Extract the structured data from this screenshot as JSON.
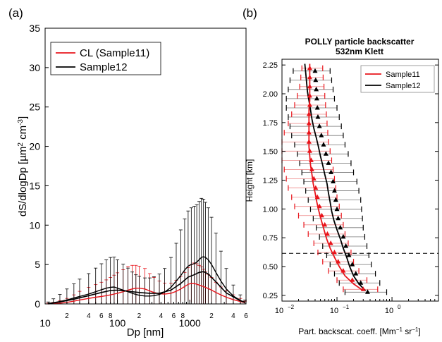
{
  "figure": {
    "panel_a_label": "(a)",
    "panel_b_label": "(b)"
  },
  "chart_data": [
    {
      "type": "line",
      "panel": "(a)",
      "title": "",
      "xlabel": "Dp [nm]",
      "ylabel": "dS/dlogDp [µm² cm⁻³]",
      "ylabel_main": "dS/dlogDp [µm",
      "ylabel_sup1": "2",
      "ylabel_mid": " cm",
      "ylabel_sup2": "-3",
      "ylabel_end": "]",
      "xscale": "log",
      "xlim": [
        10,
        6000
      ],
      "ylim": [
        0,
        35
      ],
      "yticks": [
        0,
        5,
        10,
        15,
        20,
        25,
        30,
        35
      ],
      "xticks_major": [
        {
          "value": 10,
          "label": "10"
        },
        {
          "value": 100,
          "label": "100"
        },
        {
          "value": 1000,
          "label": "1000"
        }
      ],
      "xticks_minor_labeled": [
        {
          "value": 20,
          "label": "2"
        },
        {
          "value": 40,
          "label": "4"
        },
        {
          "value": 60,
          "label": "6"
        },
        {
          "value": 80,
          "label": "8"
        },
        {
          "value": 200,
          "label": "2"
        },
        {
          "value": 400,
          "label": "4"
        },
        {
          "value": 600,
          "label": "6"
        },
        {
          "value": 800,
          "label": "8"
        },
        {
          "value": 2000,
          "label": "2"
        },
        {
          "value": 4000,
          "label": "4"
        },
        {
          "value": 6000,
          "label": "6"
        }
      ],
      "legend_position": "top-left",
      "series": [
        {
          "name": "CL (Sample11)",
          "color": "#e8141b",
          "x": [
            11,
            13,
            16,
            20,
            25,
            30,
            40,
            50,
            60,
            70,
            80,
            90,
            100,
            120,
            140,
            160,
            180,
            200,
            240,
            280,
            320,
            380,
            450,
            550,
            650,
            750,
            850,
            950,
            1050,
            1150,
            1250,
            1350,
            1450,
            1550,
            1650,
            1800,
            2000,
            2300,
            2700,
            3200,
            4000,
            5000,
            5800
          ],
          "y": [
            0.0,
            0.05,
            0.1,
            0.2,
            0.35,
            0.5,
            0.7,
            0.85,
            0.95,
            1.05,
            1.15,
            1.25,
            1.35,
            1.55,
            1.75,
            1.9,
            2.0,
            2.0,
            1.9,
            1.65,
            1.45,
            1.3,
            1.25,
            1.35,
            1.6,
            1.9,
            2.2,
            2.5,
            2.6,
            2.6,
            2.5,
            2.4,
            2.3,
            2.2,
            2.1,
            1.95,
            1.75,
            1.45,
            1.15,
            0.85,
            0.55,
            0.3,
            0.15
          ],
          "err": [
            0.1,
            0.15,
            0.3,
            0.5,
            0.8,
            1.1,
            1.4,
            1.6,
            1.8,
            2.0,
            2.2,
            2.4,
            2.6,
            2.8,
            3.0,
            3.0,
            2.9,
            2.8,
            2.6,
            2.2,
            1.9,
            1.6,
            1.4,
            1.3,
            1.4,
            1.6,
            1.8,
            2.1,
            2.4,
            2.6,
            2.6,
            2.5,
            2.4,
            2.2,
            2.0,
            1.8,
            1.6,
            1.3,
            1.0,
            0.8,
            0.6,
            0.4,
            0.2
          ]
        },
        {
          "name": "Sample12",
          "color": "#000000",
          "x": [
            11,
            13,
            16,
            20,
            25,
            30,
            40,
            50,
            60,
            70,
            80,
            90,
            100,
            120,
            140,
            160,
            180,
            200,
            240,
            280,
            320,
            380,
            450,
            550,
            650,
            750,
            850,
            950,
            1050,
            1150,
            1250,
            1350,
            1450,
            1550,
            1650,
            1800,
            2000,
            2300,
            2700,
            3200,
            4000,
            5000,
            5800
          ],
          "y": [
            0.05,
            0.15,
            0.3,
            0.5,
            0.75,
            0.95,
            1.25,
            1.55,
            1.8,
            2.0,
            2.1,
            2.15,
            2.0,
            1.75,
            1.55,
            1.35,
            1.2,
            1.1,
            1.0,
            1.0,
            1.05,
            1.2,
            1.5,
            2.1,
            2.9,
            3.6,
            4.3,
            4.8,
            5.0,
            5.1,
            5.3,
            5.6,
            5.9,
            6.0,
            5.9,
            5.6,
            5.0,
            4.0,
            2.9,
            1.9,
            1.0,
            0.45,
            0.2
          ],
          "err": [
            0.2,
            0.5,
            0.9,
            1.4,
            1.8,
            2.2,
            2.6,
            3.0,
            3.3,
            3.6,
            3.8,
            3.8,
            3.6,
            3.3,
            3.0,
            2.7,
            2.5,
            2.4,
            2.3,
            2.3,
            2.4,
            2.6,
            3.0,
            3.8,
            4.8,
            5.8,
            6.5,
            7.0,
            7.2,
            7.3,
            7.3,
            7.4,
            7.5,
            7.3,
            7.0,
            6.6,
            6.0,
            5.0,
            3.8,
            2.6,
            1.4,
            0.7,
            0.3
          ]
        },
        {
          "name": "",
          "color": "#000000",
          "role": "mean-line",
          "x": [
            11,
            16,
            25,
            40,
            60,
            80,
            100,
            140,
            200,
            280,
            380,
            550,
            750,
            950,
            1150,
            1350,
            1550,
            1800,
            2300,
            3200,
            5000,
            5800
          ],
          "y": [
            0.05,
            0.25,
            0.6,
            1.05,
            1.45,
            1.7,
            1.75,
            1.6,
            1.45,
            1.35,
            1.35,
            1.75,
            2.6,
            3.4,
            3.7,
            4.0,
            4.1,
            3.8,
            2.8,
            1.4,
            0.4,
            0.2
          ]
        }
      ]
    },
    {
      "type": "line",
      "panel": "(b)",
      "title": "POLLY particle backscatter",
      "subtitle": "532nm Klett",
      "xlabel": "Part. backscat. coeff. [Mm⁻¹ sr⁻¹]",
      "xlabel_main": "Part. backscat. coeff. [Mm",
      "xlabel_sup1": "−1",
      "xlabel_mid": " sr",
      "xlabel_sup2": "−1",
      "xlabel_end": "]",
      "ylabel": "Height [km]",
      "xscale": "log",
      "xlim": [
        0.01,
        7
      ],
      "ylim": [
        0.2,
        2.3
      ],
      "yticks": [
        0.25,
        0.5,
        0.75,
        1.0,
        1.25,
        1.5,
        1.75,
        2.0,
        2.25
      ],
      "ytick_labels": [
        "0.25",
        "0.50",
        "0.75",
        "1.00",
        "1.25",
        "1.50",
        "1.75",
        "2.00",
        "2.25"
      ],
      "xticks": [
        {
          "value": 0.01,
          "base": "10",
          "exp": "−2"
        },
        {
          "value": 0.1,
          "base": "10",
          "exp": "−1"
        },
        {
          "value": 1,
          "base": "10",
          "exp": "0"
        }
      ],
      "hline": 0.615,
      "legend_position": "top-right",
      "series": [
        {
          "name": "Sample11",
          "color": "#e8141b",
          "line_y": [
            0.29,
            0.35,
            0.42,
            0.5,
            0.58,
            0.66,
            0.74,
            0.82,
            0.9,
            0.98,
            1.06,
            1.14,
            1.22,
            1.3,
            1.38,
            1.46,
            1.54,
            1.62,
            1.7,
            1.78,
            1.86,
            1.94,
            2.02,
            2.1,
            2.18,
            2.26
          ],
          "line_x": [
            0.3,
            0.2,
            0.14,
            0.11,
            0.09,
            0.075,
            0.065,
            0.058,
            0.052,
            0.047,
            0.043,
            0.04,
            0.037,
            0.035,
            0.033,
            0.032,
            0.031,
            0.031,
            0.031,
            0.031,
            0.031,
            0.032,
            0.032,
            0.032,
            0.032,
            0.032
          ],
          "points": [
            {
              "y": 0.29,
              "x": 0.3,
              "lo": 0.13,
              "hi": 0.55
            },
            {
              "y": 0.37,
              "x": 0.19,
              "lo": 0.1,
              "hi": 0.35
            },
            {
              "y": 0.45,
              "x": 0.13,
              "lo": 0.07,
              "hi": 0.25
            },
            {
              "y": 0.53,
              "x": 0.105,
              "lo": 0.055,
              "hi": 0.2
            },
            {
              "y": 0.61,
              "x": 0.09,
              "lo": 0.045,
              "hi": 0.18
            },
            {
              "y": 0.69,
              "x": 0.077,
              "lo": 0.038,
              "hi": 0.16
            },
            {
              "y": 0.77,
              "x": 0.067,
              "lo": 0.03,
              "hi": 0.14
            },
            {
              "y": 0.85,
              "x": 0.06,
              "lo": 0.025,
              "hi": 0.13
            },
            {
              "y": 0.93,
              "x": 0.053,
              "lo": 0.02,
              "hi": 0.12
            },
            {
              "y": 1.01,
              "x": 0.048,
              "lo": 0.017,
              "hi": 0.11
            },
            {
              "y": 1.09,
              "x": 0.044,
              "lo": 0.015,
              "hi": 0.1
            },
            {
              "y": 1.17,
              "x": 0.041,
              "lo": 0.013,
              "hi": 0.095
            },
            {
              "y": 1.25,
              "x": 0.038,
              "lo": 0.012,
              "hi": 0.09
            },
            {
              "y": 1.33,
              "x": 0.035,
              "lo": 0.011,
              "hi": 0.085
            },
            {
              "y": 1.41,
              "x": 0.034,
              "lo": 0.01,
              "hi": 0.08
            },
            {
              "y": 1.49,
              "x": 0.032,
              "lo": 0.01,
              "hi": 0.075
            },
            {
              "y": 1.57,
              "x": 0.031,
              "lo": 0.01,
              "hi": 0.07
            },
            {
              "y": 1.65,
              "x": 0.031,
              "lo": 0.011,
              "hi": 0.068
            },
            {
              "y": 1.73,
              "x": 0.031,
              "lo": 0.013,
              "hi": 0.066
            },
            {
              "y": 1.81,
              "x": 0.031,
              "lo": 0.015,
              "hi": 0.064
            },
            {
              "y": 1.89,
              "x": 0.032,
              "lo": 0.017,
              "hi": 0.062
            },
            {
              "y": 1.97,
              "x": 0.032,
              "lo": 0.019,
              "hi": 0.06
            },
            {
              "y": 2.05,
              "x": 0.032,
              "lo": 0.021,
              "hi": 0.058
            },
            {
              "y": 2.13,
              "x": 0.032,
              "lo": 0.022,
              "hi": 0.056
            },
            {
              "y": 2.21,
              "x": 0.032,
              "lo": 0.023,
              "hi": 0.055
            }
          ]
        },
        {
          "name": "Sample12",
          "color": "#000000",
          "line_y": [
            0.29,
            0.35,
            0.42,
            0.5,
            0.58,
            0.66,
            0.74,
            0.82,
            0.9,
            0.98,
            1.06,
            1.14,
            1.22,
            1.3,
            1.38,
            1.46,
            1.54,
            1.62,
            1.7,
            1.78,
            1.86,
            1.94,
            2.02,
            2.1,
            2.18,
            2.26
          ],
          "line_x": [
            0.33,
            0.25,
            0.2,
            0.17,
            0.15,
            0.13,
            0.115,
            0.1,
            0.088,
            0.08,
            0.075,
            0.07,
            0.066,
            0.06,
            0.055,
            0.05,
            0.046,
            0.042,
            0.038,
            0.035,
            0.033,
            0.031,
            0.029,
            0.028,
            0.027,
            0.026
          ],
          "points": [
            {
              "y": 0.29,
              "x": 0.36,
              "lo": 0.14,
              "hi": 0.8
            },
            {
              "y": 0.37,
              "x": 0.27,
              "lo": 0.11,
              "hi": 0.6
            },
            {
              "y": 0.45,
              "x": 0.22,
              "lo": 0.09,
              "hi": 0.5
            },
            {
              "y": 0.53,
              "x": 0.19,
              "lo": 0.075,
              "hi": 0.42
            },
            {
              "y": 0.61,
              "x": 0.165,
              "lo": 0.065,
              "hi": 0.38
            },
            {
              "y": 0.69,
              "x": 0.145,
              "lo": 0.055,
              "hi": 0.35
            },
            {
              "y": 0.77,
              "x": 0.13,
              "lo": 0.048,
              "hi": 0.32
            },
            {
              "y": 0.85,
              "x": 0.115,
              "lo": 0.042,
              "hi": 0.3
            },
            {
              "y": 0.93,
              "x": 0.105,
              "lo": 0.037,
              "hi": 0.29
            },
            {
              "y": 1.01,
              "x": 0.1,
              "lo": 0.033,
              "hi": 0.28
            },
            {
              "y": 1.09,
              "x": 0.095,
              "lo": 0.03,
              "hi": 0.27
            },
            {
              "y": 1.17,
              "x": 0.09,
              "lo": 0.027,
              "hi": 0.25
            },
            {
              "y": 1.25,
              "x": 0.085,
              "lo": 0.025,
              "hi": 0.23
            },
            {
              "y": 1.33,
              "x": 0.078,
              "lo": 0.023,
              "hi": 0.2
            },
            {
              "y": 1.41,
              "x": 0.07,
              "lo": 0.021,
              "hi": 0.18
            },
            {
              "y": 1.49,
              "x": 0.063,
              "lo": 0.019,
              "hi": 0.16
            },
            {
              "y": 1.57,
              "x": 0.057,
              "lo": 0.017,
              "hi": 0.14
            },
            {
              "y": 1.65,
              "x": 0.052,
              "lo": 0.015,
              "hi": 0.13
            },
            {
              "y": 1.73,
              "x": 0.048,
              "lo": 0.014,
              "hi": 0.12
            },
            {
              "y": 1.81,
              "x": 0.045,
              "lo": 0.013,
              "hi": 0.11
            },
            {
              "y": 1.89,
              "x": 0.044,
              "lo": 0.012,
              "hi": 0.1
            },
            {
              "y": 1.97,
              "x": 0.043,
              "lo": 0.012,
              "hi": 0.09
            },
            {
              "y": 2.05,
              "x": 0.042,
              "lo": 0.013,
              "hi": 0.085
            },
            {
              "y": 2.13,
              "x": 0.041,
              "lo": 0.014,
              "hi": 0.08
            },
            {
              "y": 2.21,
              "x": 0.04,
              "lo": 0.016,
              "hi": 0.075
            }
          ]
        }
      ]
    }
  ]
}
